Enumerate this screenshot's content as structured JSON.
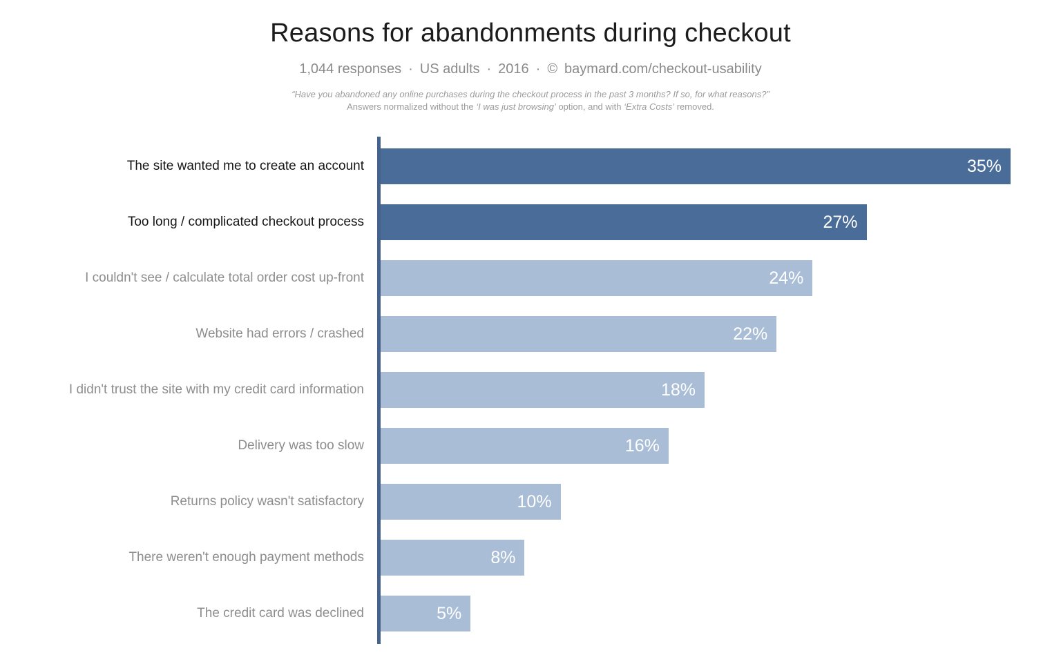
{
  "header": {
    "title": "Reasons for abandonments during checkout",
    "subtitle": "1,044 responses · US adults · 2016 · © baymard.com/checkout-usability",
    "footnote_line1": "“Have you abandoned any online purchases during the checkout process in the past 3 months? If so, for what reasons?”",
    "footnote_line2_prefix": "Answers normalized without the ",
    "footnote_line2_italic1": "‘I was just browsing’",
    "footnote_line2_mid": " option, and with ",
    "footnote_line2_italic2": "‘Extra Costs’",
    "footnote_line2_suffix": " removed."
  },
  "chart_data": {
    "type": "bar",
    "orientation": "horizontal",
    "title": "Reasons for abandonments during checkout",
    "xlabel": "",
    "ylabel": "",
    "grid": false,
    "legend": false,
    "axis_max": 35,
    "categories": [
      "The site wanted me to create an account",
      "Too long / complicated checkout process",
      "I couldn't see / calculate total order cost up-front",
      "Website had errors / crashed",
      "I didn't trust the site with my credit card information",
      "Delivery was too slow",
      "Returns policy wasn't satisfactory",
      "There weren't enough payment methods",
      "The credit card was declined"
    ],
    "values": [
      35,
      27,
      24,
      22,
      18,
      16,
      10,
      8,
      5
    ],
    "value_labels": [
      "35%",
      "27%",
      "24%",
      "22%",
      "18%",
      "16%",
      "10%",
      "8%",
      "5%"
    ],
    "highlighted": [
      true,
      true,
      false,
      false,
      false,
      false,
      false,
      false,
      false
    ],
    "colors": {
      "bar_highlight": "#4a6c99",
      "bar_normal": "#a9bdd6",
      "axis": "#44628c",
      "label_dark": "#161616",
      "label_gray": "#8d8d8d",
      "value_text": "#ffffff"
    }
  }
}
